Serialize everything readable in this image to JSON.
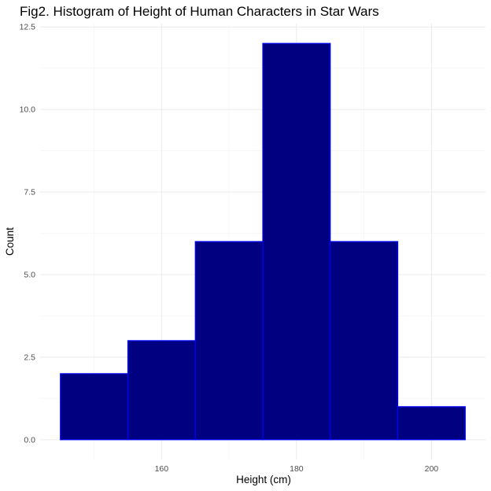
{
  "chart_data": {
    "type": "bar",
    "title": "Fig2. Histogram of Height of Human Characters in Star Wars",
    "xlabel": "Height (cm)",
    "ylabel": "Count",
    "bins": [
      {
        "start": 145,
        "end": 155,
        "count": 2
      },
      {
        "start": 155,
        "end": 165,
        "count": 3
      },
      {
        "start": 165,
        "end": 175,
        "count": 6
      },
      {
        "start": 175,
        "end": 185,
        "count": 12
      },
      {
        "start": 185,
        "end": 195,
        "count": 6
      },
      {
        "start": 195,
        "end": 205,
        "count": 1
      }
    ],
    "xlim": [
      142,
      208
    ],
    "ylim": [
      -0.6,
      12.6
    ],
    "x_ticks": [
      160,
      180,
      200
    ],
    "x_tick_labels": [
      "160",
      "180",
      "200"
    ],
    "x_minor_ticks": [
      150,
      170,
      190
    ],
    "y_ticks": [
      0,
      2.5,
      5,
      7.5,
      10,
      12.5
    ],
    "y_tick_labels": [
      "0.0",
      "2.5",
      "5.0",
      "7.5",
      "10.0",
      "12.5"
    ],
    "y_minor_ticks": [
      1.25,
      3.75,
      6.25,
      8.75,
      11.25
    ],
    "grid": true,
    "legend": "none",
    "colors": {
      "bar_fill": "#000080",
      "bar_stroke": "#0000ff",
      "background": "#ffffff"
    }
  }
}
